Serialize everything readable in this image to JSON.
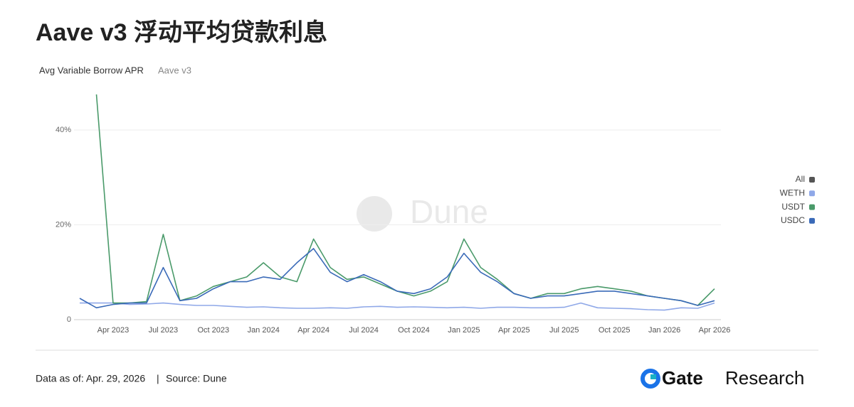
{
  "header": {
    "title": "Aave v3 浮动平均贷款利息"
  },
  "chart_data": {
    "type": "line",
    "subtitle": "Avg Variable Borrow APR",
    "subtitle_note": "Aave v3",
    "watermark": "Dune",
    "x": [
      "2023-02",
      "2023-03",
      "2023-04",
      "2023-05",
      "2023-06",
      "2023-07",
      "2023-08",
      "2023-09",
      "2023-10",
      "2023-11",
      "2023-12",
      "2024-01",
      "2024-02",
      "2024-03",
      "2024-04",
      "2024-05",
      "2024-06",
      "2024-07",
      "2024-08",
      "2024-09",
      "2024-10",
      "2024-11",
      "2024-12",
      "2025-01",
      "2025-02",
      "2025-03",
      "2025-04",
      "2025-05",
      "2025-06",
      "2025-07",
      "2025-08",
      "2025-09",
      "2025-10",
      "2025-11",
      "2025-12",
      "2026-01",
      "2026-02",
      "2026-03",
      "2026-04"
    ],
    "xlim": [
      "2023-02",
      "2026-04"
    ],
    "xticks": [
      {
        "value": "2023-04",
        "label": "Apr 2023"
      },
      {
        "value": "2023-07",
        "label": "Jul 2023"
      },
      {
        "value": "2023-10",
        "label": "Oct 2023"
      },
      {
        "value": "2024-01",
        "label": "Jan 2024"
      },
      {
        "value": "2024-04",
        "label": "Apr 2024"
      },
      {
        "value": "2024-07",
        "label": "Jul 2024"
      },
      {
        "value": "2024-10",
        "label": "Oct 2024"
      },
      {
        "value": "2025-01",
        "label": "Jan 2025"
      },
      {
        "value": "2025-04",
        "label": "Apr 2025"
      },
      {
        "value": "2025-07",
        "label": "Jul 2025"
      },
      {
        "value": "2025-10",
        "label": "Oct 2025"
      },
      {
        "value": "2026-01",
        "label": "Jan 2026"
      },
      {
        "value": "2026-04",
        "label": "Apr 2026"
      }
    ],
    "ylim": [
      0,
      48
    ],
    "yticks": [
      0,
      {
        "value": 20,
        "label": "20%"
      },
      {
        "value": 40,
        "label": "40%"
      }
    ],
    "grid": true,
    "legend": "right",
    "series": [
      {
        "name": "All",
        "color": "#555555",
        "values": [
          null,
          null,
          null,
          null,
          null,
          null,
          null,
          null,
          null,
          null,
          null,
          null,
          null,
          null,
          null,
          null,
          null,
          null,
          null,
          null,
          null,
          null,
          null,
          null,
          null,
          null,
          null,
          null,
          null,
          null,
          null,
          null,
          null,
          null,
          null,
          null,
          null,
          null,
          null
        ]
      },
      {
        "name": "WETH",
        "color": "#8fa8e8",
        "values": [
          3.5,
          3.5,
          3.5,
          3.2,
          3.3,
          3.5,
          3.2,
          3.0,
          3.0,
          2.8,
          2.6,
          2.7,
          2.5,
          2.4,
          2.4,
          2.5,
          2.4,
          2.7,
          2.8,
          2.6,
          2.7,
          2.6,
          2.5,
          2.6,
          2.4,
          2.6,
          2.6,
          2.5,
          2.5,
          2.6,
          3.5,
          2.5,
          2.4,
          2.3,
          2.1,
          2.0,
          2.5,
          2.4,
          3.5
        ]
      },
      {
        "name": "USDT",
        "color": "#4a9a6a",
        "values": [
          null,
          47.5,
          3.5,
          3.5,
          3.8,
          18,
          4,
          5,
          7,
          8,
          9,
          12,
          9,
          8,
          17,
          11,
          8.5,
          9,
          7.5,
          6,
          5,
          6,
          8,
          17,
          11,
          8.5,
          5.5,
          4.5,
          5.5,
          5.5,
          6.5,
          7,
          6.5,
          6,
          5,
          4.5,
          4,
          3,
          6.5
        ]
      },
      {
        "name": "USDC",
        "color": "#3a6ab8",
        "values": [
          4.5,
          2.5,
          3.2,
          3.5,
          3.5,
          11,
          4,
          4.5,
          6.5,
          8,
          8,
          9,
          8.5,
          12,
          15,
          10,
          8,
          9.5,
          8,
          6,
          5.5,
          6.5,
          9,
          14,
          10,
          8,
          5.5,
          4.5,
          5,
          5,
          5.5,
          6,
          6,
          5.5,
          5,
          4.5,
          4,
          3,
          4
        ]
      }
    ]
  },
  "footer": {
    "date_note": "Data as of: Apr. 29, 2026",
    "separator": "|",
    "source": "Source:  Dune",
    "brand_bold": "Gate",
    "brand": "Research"
  }
}
